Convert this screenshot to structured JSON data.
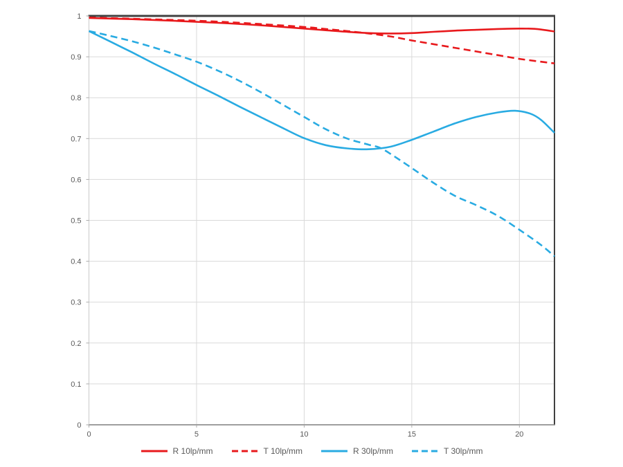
{
  "chart_data": {
    "type": "line",
    "title": "",
    "xlabel": "",
    "ylabel": "",
    "xlim": [
      0,
      21.63
    ],
    "ylim": [
      0,
      1
    ],
    "grid": true,
    "legend_position": "bottom",
    "x_ticks": [
      0,
      5,
      10,
      15,
      20
    ],
    "y_ticks": [
      "1",
      "0.9",
      "0.8",
      "0.7",
      "0.6",
      "0.5",
      "0.4",
      "0.3",
      "0.2",
      "0.1",
      "0"
    ],
    "series": [
      {
        "name": "R 10lp/mm",
        "color": "#e8191c",
        "style": "solid",
        "points": [
          [
            0,
            0.995
          ],
          [
            2,
            0.992
          ],
          [
            4,
            0.988
          ],
          [
            6,
            0.983
          ],
          [
            8,
            0.977
          ],
          [
            10,
            0.969
          ],
          [
            11,
            0.965
          ],
          [
            12,
            0.961
          ],
          [
            13,
            0.958
          ],
          [
            14,
            0.957
          ],
          [
            15,
            0.958
          ],
          [
            16,
            0.961
          ],
          [
            17,
            0.964
          ],
          [
            18,
            0.966
          ],
          [
            19,
            0.968
          ],
          [
            20,
            0.969
          ],
          [
            20.8,
            0.968
          ],
          [
            21.63,
            0.962
          ]
        ]
      },
      {
        "name": "T 10lp/mm",
        "color": "#e8191c",
        "style": "dashed",
        "points": [
          [
            0,
            0.996
          ],
          [
            2,
            0.993
          ],
          [
            4,
            0.99
          ],
          [
            6,
            0.986
          ],
          [
            8,
            0.98
          ],
          [
            10,
            0.973
          ],
          [
            11,
            0.968
          ],
          [
            12,
            0.963
          ],
          [
            13,
            0.957
          ],
          [
            14,
            0.95
          ],
          [
            15,
            0.94
          ],
          [
            16,
            0.931
          ],
          [
            17,
            0.922
          ],
          [
            18,
            0.913
          ],
          [
            19,
            0.904
          ],
          [
            20,
            0.895
          ],
          [
            21,
            0.888
          ],
          [
            21.63,
            0.884
          ]
        ]
      },
      {
        "name": "R 30lp/mm",
        "color": "#29abe2",
        "style": "solid",
        "points": [
          [
            0,
            0.963
          ],
          [
            1,
            0.937
          ],
          [
            2,
            0.911
          ],
          [
            3,
            0.884
          ],
          [
            4,
            0.858
          ],
          [
            5,
            0.831
          ],
          [
            6,
            0.805
          ],
          [
            7,
            0.778
          ],
          [
            8,
            0.752
          ],
          [
            9,
            0.726
          ],
          [
            10,
            0.701
          ],
          [
            11,
            0.684
          ],
          [
            12,
            0.676
          ],
          [
            13,
            0.674
          ],
          [
            14,
            0.68
          ],
          [
            15,
            0.697
          ],
          [
            16,
            0.717
          ],
          [
            17,
            0.737
          ],
          [
            18,
            0.753
          ],
          [
            19,
            0.764
          ],
          [
            19.8,
            0.768
          ],
          [
            20.5,
            0.761
          ],
          [
            21,
            0.746
          ],
          [
            21.63,
            0.714
          ]
        ]
      },
      {
        "name": "T 30lp/mm",
        "color": "#29abe2",
        "style": "dashed",
        "points": [
          [
            0,
            0.963
          ],
          [
            1,
            0.951
          ],
          [
            2,
            0.938
          ],
          [
            3,
            0.923
          ],
          [
            4,
            0.906
          ],
          [
            5,
            0.888
          ],
          [
            6,
            0.866
          ],
          [
            7,
            0.841
          ],
          [
            8,
            0.813
          ],
          [
            9,
            0.783
          ],
          [
            10,
            0.753
          ],
          [
            11,
            0.723
          ],
          [
            12,
            0.7
          ],
          [
            13,
            0.685
          ],
          [
            13.5,
            0.678
          ],
          [
            14,
            0.663
          ],
          [
            15,
            0.628
          ],
          [
            16,
            0.592
          ],
          [
            17,
            0.56
          ],
          [
            18,
            0.537
          ],
          [
            19,
            0.511
          ],
          [
            20,
            0.477
          ],
          [
            21,
            0.44
          ],
          [
            21.63,
            0.412
          ]
        ]
      }
    ],
    "colors": {
      "background": "#ffffff",
      "gridline": "#d9d9d9",
      "border_dark": "#404040",
      "border_light": "#c9c9c9",
      "axis_bottom": "#7f7f7f",
      "tick": "#aaaaaa",
      "label_text": "#595959"
    }
  }
}
